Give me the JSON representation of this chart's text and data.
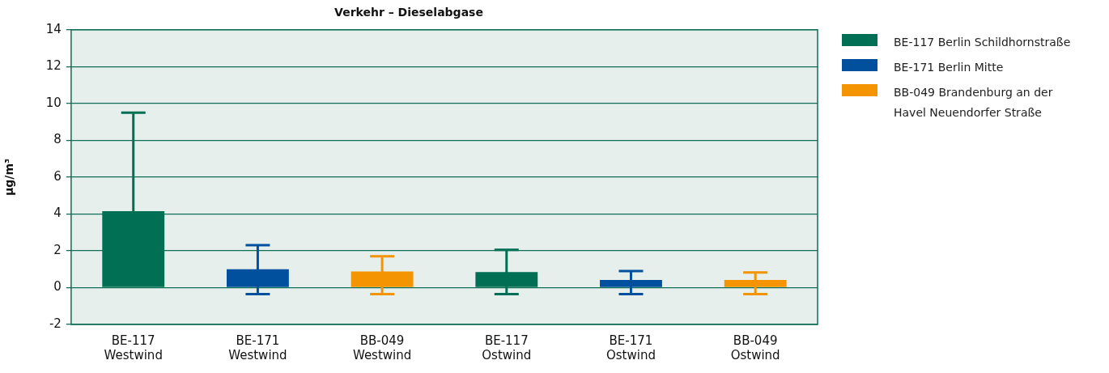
{
  "chart_data": {
    "type": "bar",
    "title": "Verkehr – Dieselabgase",
    "ylabel": "µg/m³",
    "categories": [
      "BE-117 Westwind",
      "BE-171 Westwind",
      "BB-049 Westwind",
      "BE-117 Ostwind",
      "BE-171 Ostwind",
      "BB-049 Ostwind"
    ],
    "series": [
      {
        "name": "BE-117 Berlin Schildhornstraße",
        "color": "#006f53",
        "values": [
          4.15,
          null,
          null,
          0.85,
          null,
          null
        ],
        "errors": [
          [
            4.15,
            9.5
          ],
          null,
          null,
          [
            -0.35,
            2.05
          ],
          null,
          null
        ]
      },
      {
        "name": "BE-171 Berlin Mitte",
        "color": "#00509e",
        "values": [
          null,
          1.0,
          null,
          null,
          0.42,
          null
        ],
        "errors": [
          null,
          [
            -0.35,
            2.3
          ],
          null,
          null,
          [
            -0.35,
            0.9
          ],
          null
        ]
      },
      {
        "name": "BB-049 Brandenburg an der Havel Neuendorfer Straße",
        "color": "#f39400",
        "values": [
          null,
          null,
          0.88,
          null,
          null,
          0.42
        ],
        "errors": [
          null,
          null,
          [
            -0.35,
            1.7
          ],
          null,
          null,
          [
            -0.35,
            0.82
          ]
        ]
      }
    ],
    "ylim": [
      -2,
      14
    ],
    "yticks": [
      -2,
      0,
      2,
      4,
      6,
      8,
      10,
      12,
      14
    ],
    "grid": "y",
    "legend": "top right"
  }
}
